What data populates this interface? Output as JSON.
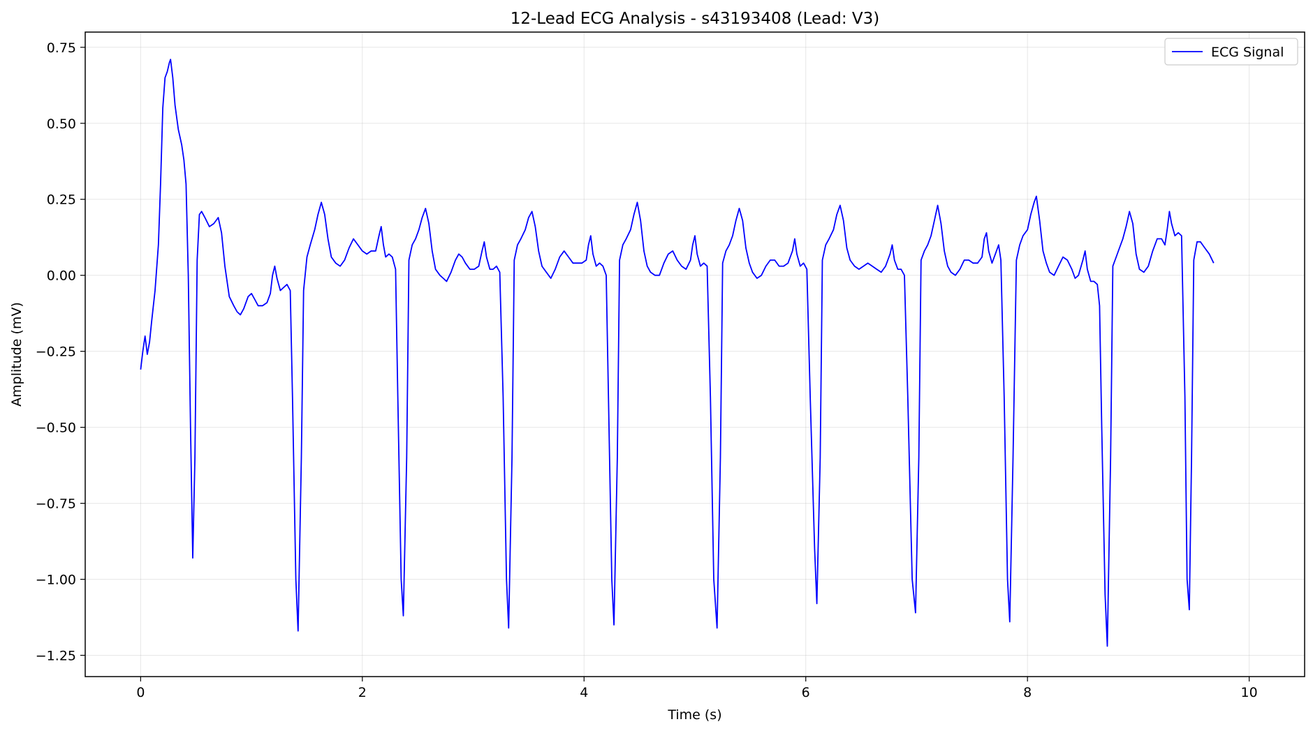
{
  "chart_data": {
    "type": "line",
    "title": "12-Lead ECG Analysis - s43193408 (Lead: V3)",
    "xlabel": "Time (s)",
    "ylabel": "Amplitude (mV)",
    "xlim": [
      -0.5,
      10.5
    ],
    "ylim": [
      -1.32,
      0.8
    ],
    "xticks": [
      0,
      2,
      4,
      6,
      8,
      10
    ],
    "xtick_labels": [
      "0",
      "2",
      "4",
      "6",
      "8",
      "10"
    ],
    "yticks": [
      0.75,
      0.5,
      0.25,
      0.0,
      -0.25,
      -0.5,
      -0.75,
      -1.0,
      -1.25
    ],
    "ytick_labels": [
      "0.75",
      "0.50",
      "0.25",
      "0.00",
      "−0.25",
      "−0.50",
      "−0.75",
      "−1.00",
      "−1.25"
    ],
    "grid": true,
    "legend_position": "top-right",
    "series": [
      {
        "name": "ECG Signal",
        "color": "#0000ff",
        "points": [
          [
            0.0,
            -0.31
          ],
          [
            0.02,
            -0.25
          ],
          [
            0.04,
            -0.2
          ],
          [
            0.06,
            -0.26
          ],
          [
            0.08,
            -0.22
          ],
          [
            0.1,
            -0.15
          ],
          [
            0.13,
            -0.05
          ],
          [
            0.16,
            0.1
          ],
          [
            0.18,
            0.3
          ],
          [
            0.2,
            0.55
          ],
          [
            0.22,
            0.65
          ],
          [
            0.24,
            0.67
          ],
          [
            0.26,
            0.7
          ],
          [
            0.27,
            0.71
          ],
          [
            0.29,
            0.65
          ],
          [
            0.31,
            0.56
          ],
          [
            0.34,
            0.48
          ],
          [
            0.37,
            0.43
          ],
          [
            0.39,
            0.38
          ],
          [
            0.41,
            0.3
          ],
          [
            0.43,
            0.0
          ],
          [
            0.45,
            -0.5
          ],
          [
            0.47,
            -0.93
          ],
          [
            0.49,
            -0.6
          ],
          [
            0.51,
            0.05
          ],
          [
            0.53,
            0.2
          ],
          [
            0.55,
            0.21
          ],
          [
            0.58,
            0.19
          ],
          [
            0.62,
            0.16
          ],
          [
            0.66,
            0.17
          ],
          [
            0.7,
            0.19
          ],
          [
            0.73,
            0.14
          ],
          [
            0.76,
            0.03
          ],
          [
            0.8,
            -0.07
          ],
          [
            0.84,
            -0.1
          ],
          [
            0.87,
            -0.12
          ],
          [
            0.9,
            -0.13
          ],
          [
            0.93,
            -0.11
          ],
          [
            0.97,
            -0.07
          ],
          [
            1.0,
            -0.06
          ],
          [
            1.03,
            -0.08
          ],
          [
            1.06,
            -0.1
          ],
          [
            1.1,
            -0.1
          ],
          [
            1.14,
            -0.09
          ],
          [
            1.17,
            -0.06
          ],
          [
            1.19,
            0.0
          ],
          [
            1.21,
            0.03
          ],
          [
            1.23,
            -0.01
          ],
          [
            1.26,
            -0.05
          ],
          [
            1.29,
            -0.04
          ],
          [
            1.32,
            -0.03
          ],
          [
            1.35,
            -0.05
          ],
          [
            1.37,
            -0.4
          ],
          [
            1.4,
            -1.0
          ],
          [
            1.42,
            -1.17
          ],
          [
            1.45,
            -0.6
          ],
          [
            1.47,
            -0.05
          ],
          [
            1.5,
            0.06
          ],
          [
            1.53,
            0.1
          ],
          [
            1.57,
            0.15
          ],
          [
            1.6,
            0.2
          ],
          [
            1.63,
            0.24
          ],
          [
            1.66,
            0.2
          ],
          [
            1.69,
            0.12
          ],
          [
            1.72,
            0.06
          ],
          [
            1.76,
            0.04
          ],
          [
            1.8,
            0.03
          ],
          [
            1.84,
            0.05
          ],
          [
            1.88,
            0.09
          ],
          [
            1.92,
            0.12
          ],
          [
            1.96,
            0.1
          ],
          [
            2.0,
            0.08
          ],
          [
            2.04,
            0.07
          ],
          [
            2.08,
            0.08
          ],
          [
            2.12,
            0.08
          ],
          [
            2.15,
            0.13
          ],
          [
            2.17,
            0.16
          ],
          [
            2.19,
            0.1
          ],
          [
            2.21,
            0.06
          ],
          [
            2.24,
            0.07
          ],
          [
            2.27,
            0.06
          ],
          [
            2.3,
            0.02
          ],
          [
            2.32,
            -0.4
          ],
          [
            2.35,
            -1.0
          ],
          [
            2.37,
            -1.12
          ],
          [
            2.4,
            -0.6
          ],
          [
            2.42,
            0.05
          ],
          [
            2.45,
            0.1
          ],
          [
            2.48,
            0.12
          ],
          [
            2.51,
            0.15
          ],
          [
            2.54,
            0.19
          ],
          [
            2.57,
            0.22
          ],
          [
            2.6,
            0.17
          ],
          [
            2.63,
            0.08
          ],
          [
            2.66,
            0.02
          ],
          [
            2.7,
            0.0
          ],
          [
            2.73,
            -0.01
          ],
          [
            2.76,
            -0.02
          ],
          [
            2.8,
            0.01
          ],
          [
            2.84,
            0.05
          ],
          [
            2.87,
            0.07
          ],
          [
            2.9,
            0.06
          ],
          [
            2.93,
            0.04
          ],
          [
            2.97,
            0.02
          ],
          [
            3.01,
            0.02
          ],
          [
            3.05,
            0.03
          ],
          [
            3.08,
            0.08
          ],
          [
            3.1,
            0.11
          ],
          [
            3.12,
            0.06
          ],
          [
            3.15,
            0.02
          ],
          [
            3.18,
            0.02
          ],
          [
            3.21,
            0.03
          ],
          [
            3.24,
            0.01
          ],
          [
            3.27,
            -0.4
          ],
          [
            3.3,
            -1.0
          ],
          [
            3.32,
            -1.16
          ],
          [
            3.35,
            -0.6
          ],
          [
            3.37,
            0.05
          ],
          [
            3.4,
            0.1
          ],
          [
            3.43,
            0.12
          ],
          [
            3.47,
            0.15
          ],
          [
            3.5,
            0.19
          ],
          [
            3.53,
            0.21
          ],
          [
            3.56,
            0.16
          ],
          [
            3.59,
            0.08
          ],
          [
            3.62,
            0.03
          ],
          [
            3.66,
            0.01
          ],
          [
            3.7,
            -0.01
          ],
          [
            3.74,
            0.02
          ],
          [
            3.78,
            0.06
          ],
          [
            3.82,
            0.08
          ],
          [
            3.86,
            0.06
          ],
          [
            3.9,
            0.04
          ],
          [
            3.94,
            0.04
          ],
          [
            3.98,
            0.04
          ],
          [
            4.02,
            0.05
          ],
          [
            4.04,
            0.1
          ],
          [
            4.06,
            0.13
          ],
          [
            4.08,
            0.07
          ],
          [
            4.11,
            0.03
          ],
          [
            4.14,
            0.04
          ],
          [
            4.17,
            0.03
          ],
          [
            4.2,
            0.0
          ],
          [
            4.22,
            -0.4
          ],
          [
            4.25,
            -1.0
          ],
          [
            4.27,
            -1.15
          ],
          [
            4.3,
            -0.6
          ],
          [
            4.32,
            0.05
          ],
          [
            4.35,
            0.1
          ],
          [
            4.38,
            0.12
          ],
          [
            4.42,
            0.15
          ],
          [
            4.45,
            0.2
          ],
          [
            4.48,
            0.24
          ],
          [
            4.51,
            0.18
          ],
          [
            4.54,
            0.08
          ],
          [
            4.57,
            0.03
          ],
          [
            4.6,
            0.01
          ],
          [
            4.64,
            0.0
          ],
          [
            4.68,
            0.0
          ],
          [
            4.72,
            0.04
          ],
          [
            4.76,
            0.07
          ],
          [
            4.8,
            0.08
          ],
          [
            4.84,
            0.05
          ],
          [
            4.88,
            0.03
          ],
          [
            4.92,
            0.02
          ],
          [
            4.96,
            0.05
          ],
          [
            4.98,
            0.1
          ],
          [
            5.0,
            0.13
          ],
          [
            5.02,
            0.07
          ],
          [
            5.05,
            0.03
          ],
          [
            5.08,
            0.04
          ],
          [
            5.11,
            0.03
          ],
          [
            5.14,
            -0.4
          ],
          [
            5.17,
            -1.0
          ],
          [
            5.2,
            -1.16
          ],
          [
            5.23,
            -0.6
          ],
          [
            5.25,
            0.04
          ],
          [
            5.28,
            0.08
          ],
          [
            5.31,
            0.1
          ],
          [
            5.34,
            0.13
          ],
          [
            5.37,
            0.18
          ],
          [
            5.4,
            0.22
          ],
          [
            5.43,
            0.18
          ],
          [
            5.46,
            0.09
          ],
          [
            5.49,
            0.04
          ],
          [
            5.52,
            0.01
          ],
          [
            5.56,
            -0.01
          ],
          [
            5.6,
            0.0
          ],
          [
            5.64,
            0.03
          ],
          [
            5.68,
            0.05
          ],
          [
            5.72,
            0.05
          ],
          [
            5.76,
            0.03
          ],
          [
            5.8,
            0.03
          ],
          [
            5.84,
            0.04
          ],
          [
            5.88,
            0.08
          ],
          [
            5.9,
            0.12
          ],
          [
            5.92,
            0.07
          ],
          [
            5.95,
            0.03
          ],
          [
            5.98,
            0.04
          ],
          [
            6.01,
            0.02
          ],
          [
            6.04,
            -0.4
          ],
          [
            6.08,
            -0.9
          ],
          [
            6.1,
            -1.08
          ],
          [
            6.13,
            -0.6
          ],
          [
            6.15,
            0.05
          ],
          [
            6.18,
            0.1
          ],
          [
            6.21,
            0.12
          ],
          [
            6.25,
            0.15
          ],
          [
            6.28,
            0.2
          ],
          [
            6.31,
            0.23
          ],
          [
            6.34,
            0.18
          ],
          [
            6.37,
            0.09
          ],
          [
            6.4,
            0.05
          ],
          [
            6.44,
            0.03
          ],
          [
            6.48,
            0.02
          ],
          [
            6.52,
            0.03
          ],
          [
            6.56,
            0.04
          ],
          [
            6.6,
            0.03
          ],
          [
            6.64,
            0.02
          ],
          [
            6.68,
            0.01
          ],
          [
            6.72,
            0.03
          ],
          [
            6.76,
            0.07
          ],
          [
            6.78,
            0.1
          ],
          [
            6.8,
            0.05
          ],
          [
            6.83,
            0.02
          ],
          [
            6.86,
            0.02
          ],
          [
            6.89,
            0.0
          ],
          [
            6.92,
            -0.4
          ],
          [
            6.96,
            -1.0
          ],
          [
            6.99,
            -1.11
          ],
          [
            7.02,
            -0.6
          ],
          [
            7.04,
            0.05
          ],
          [
            7.07,
            0.08
          ],
          [
            7.1,
            0.1
          ],
          [
            7.13,
            0.13
          ],
          [
            7.16,
            0.18
          ],
          [
            7.19,
            0.23
          ],
          [
            7.22,
            0.17
          ],
          [
            7.25,
            0.08
          ],
          [
            7.28,
            0.03
          ],
          [
            7.31,
            0.01
          ],
          [
            7.35,
            0.0
          ],
          [
            7.39,
            0.02
          ],
          [
            7.43,
            0.05
          ],
          [
            7.47,
            0.05
          ],
          [
            7.51,
            0.04
          ],
          [
            7.55,
            0.04
          ],
          [
            7.59,
            0.06
          ],
          [
            7.61,
            0.12
          ],
          [
            7.63,
            0.14
          ],
          [
            7.65,
            0.08
          ],
          [
            7.68,
            0.04
          ],
          [
            7.71,
            0.07
          ],
          [
            7.74,
            0.1
          ],
          [
            7.76,
            0.05
          ],
          [
            7.79,
            -0.4
          ],
          [
            7.82,
            -1.0
          ],
          [
            7.84,
            -1.14
          ],
          [
            7.87,
            -0.6
          ],
          [
            7.9,
            0.05
          ],
          [
            7.93,
            0.1
          ],
          [
            7.96,
            0.13
          ],
          [
            8.0,
            0.15
          ],
          [
            8.03,
            0.2
          ],
          [
            8.06,
            0.24
          ],
          [
            8.08,
            0.26
          ],
          [
            8.11,
            0.18
          ],
          [
            8.14,
            0.08
          ],
          [
            8.17,
            0.04
          ],
          [
            8.2,
            0.01
          ],
          [
            8.24,
            0.0
          ],
          [
            8.28,
            0.03
          ],
          [
            8.32,
            0.06
          ],
          [
            8.36,
            0.05
          ],
          [
            8.4,
            0.02
          ],
          [
            8.43,
            -0.01
          ],
          [
            8.46,
            0.0
          ],
          [
            8.5,
            0.05
          ],
          [
            8.52,
            0.08
          ],
          [
            8.54,
            0.02
          ],
          [
            8.57,
            -0.02
          ],
          [
            8.6,
            -0.02
          ],
          [
            8.63,
            -0.03
          ],
          [
            8.65,
            -0.1
          ],
          [
            8.67,
            -0.5
          ],
          [
            8.7,
            -1.05
          ],
          [
            8.72,
            -1.22
          ],
          [
            8.75,
            -0.6
          ],
          [
            8.77,
            0.03
          ],
          [
            8.8,
            0.06
          ],
          [
            8.83,
            0.09
          ],
          [
            8.86,
            0.12
          ],
          [
            8.89,
            0.16
          ],
          [
            8.92,
            0.21
          ],
          [
            8.95,
            0.17
          ],
          [
            8.98,
            0.07
          ],
          [
            9.01,
            0.02
          ],
          [
            9.05,
            0.01
          ],
          [
            9.09,
            0.03
          ],
          [
            9.13,
            0.08
          ],
          [
            9.17,
            0.12
          ],
          [
            9.21,
            0.12
          ],
          [
            9.24,
            0.1
          ],
          [
            9.26,
            0.15
          ],
          [
            9.28,
            0.21
          ],
          [
            9.3,
            0.17
          ],
          [
            9.33,
            0.13
          ],
          [
            9.36,
            0.14
          ],
          [
            9.39,
            0.13
          ],
          [
            9.42,
            -0.4
          ],
          [
            9.44,
            -1.0
          ],
          [
            9.46,
            -1.1
          ],
          [
            9.48,
            -0.6
          ],
          [
            9.5,
            0.05
          ],
          [
            9.53,
            0.11
          ],
          [
            9.56,
            0.11
          ],
          [
            9.6,
            0.09
          ],
          [
            9.64,
            0.07
          ],
          [
            9.68,
            0.04
          ]
        ]
      }
    ]
  }
}
